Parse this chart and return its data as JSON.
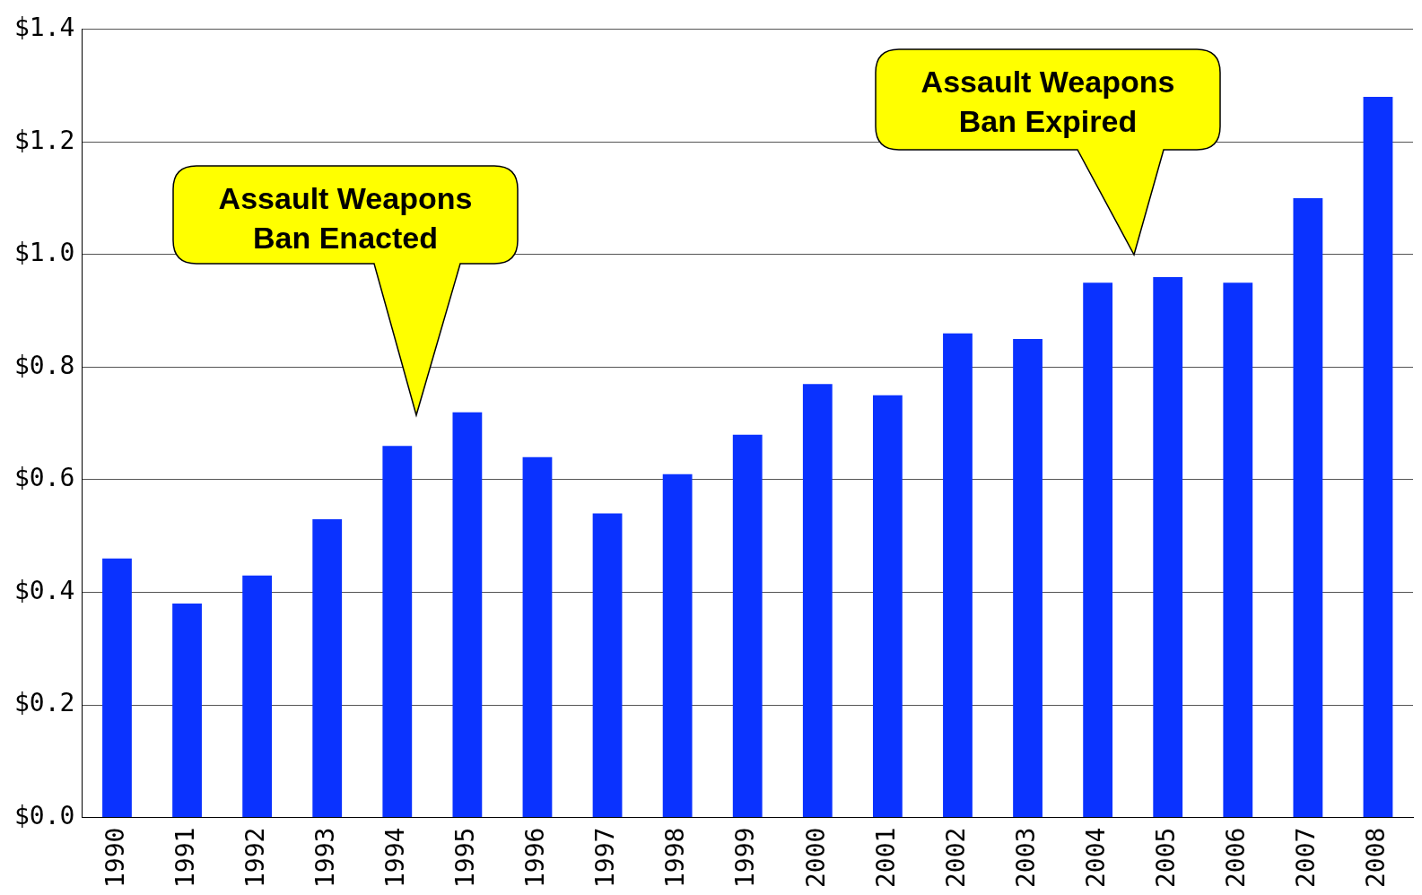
{
  "chart_data": {
    "type": "bar",
    "categories": [
      "1990",
      "1991",
      "1992",
      "1993",
      "1994",
      "1995",
      "1996",
      "1997",
      "1998",
      "1999",
      "2000",
      "2001",
      "2002",
      "2003",
      "2004",
      "2005",
      "2006",
      "2007",
      "2008"
    ],
    "values": [
      0.46,
      0.38,
      0.43,
      0.53,
      0.66,
      0.72,
      0.64,
      0.54,
      0.61,
      0.68,
      0.77,
      0.75,
      0.86,
      0.85,
      0.95,
      0.96,
      0.95,
      1.1,
      1.28
    ],
    "color": "#0a32ff",
    "ylim": [
      0,
      1.4
    ],
    "yticks": [
      {
        "value": 0,
        "label": "$0.0"
      },
      {
        "value": 0.2,
        "label": "$0.2"
      },
      {
        "value": 0.4,
        "label": "$0.4"
      },
      {
        "value": 0.6,
        "label": "$0.6"
      },
      {
        "value": 0.8,
        "label": "$0.8"
      },
      {
        "value": 1.0,
        "label": "$1.0"
      },
      {
        "value": 1.2,
        "label": "$1.2"
      },
      {
        "value": 1.4,
        "label": "$1.4"
      }
    ],
    "grid": "y",
    "legend": false,
    "annotations": [
      "Assault Weapons\nBan Enacted",
      "Assault Weapons\nBan Expired"
    ]
  }
}
